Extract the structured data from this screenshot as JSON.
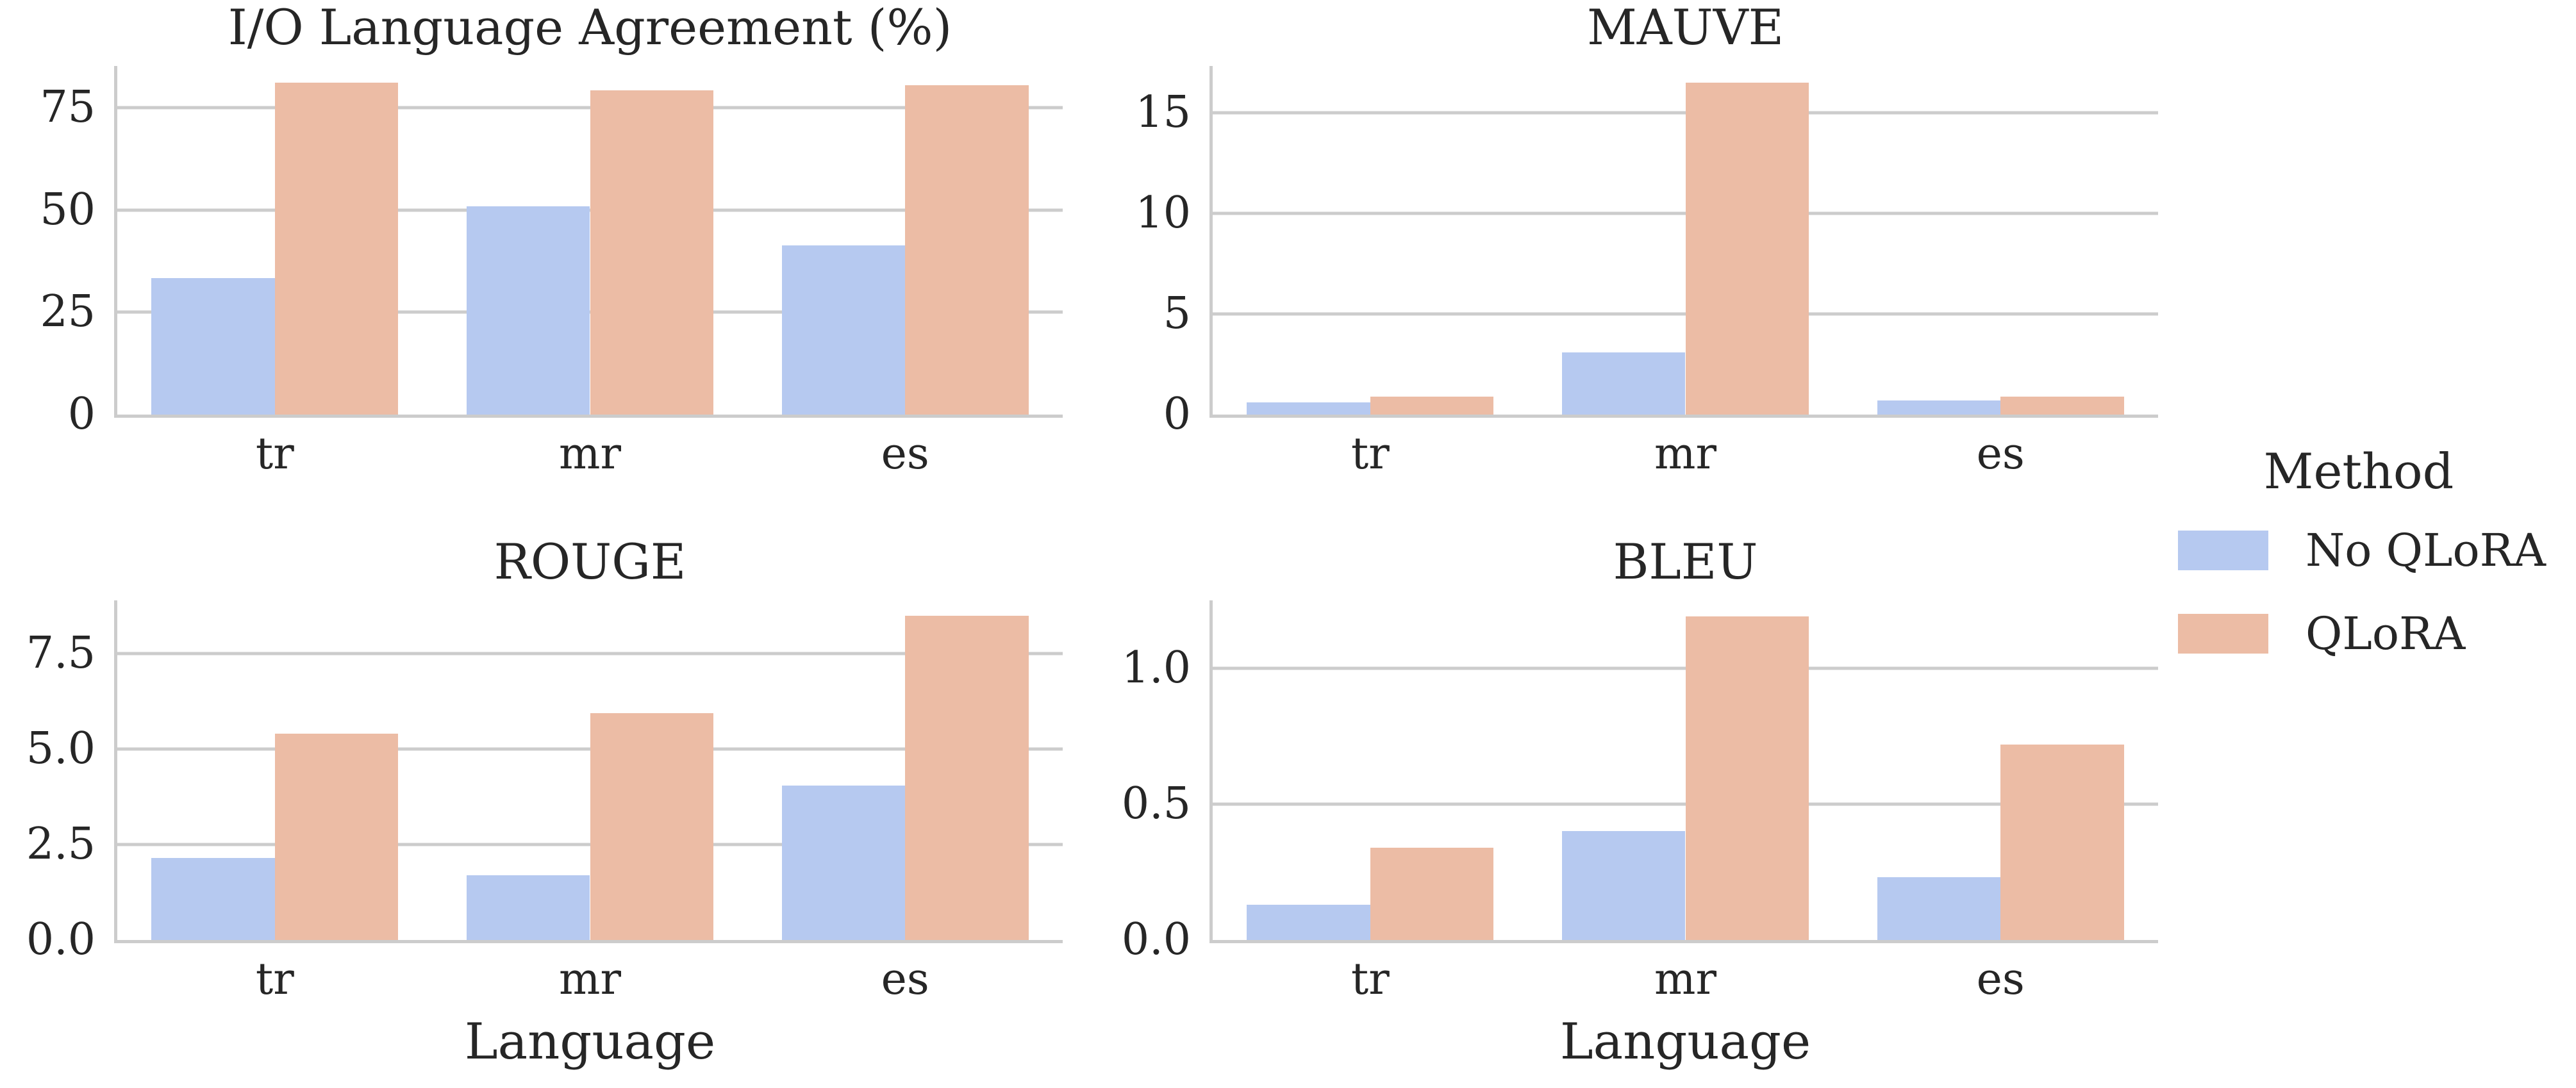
{
  "figure": {
    "background": "#ffffff",
    "text_color": "#262626",
    "grid_color": "#cccccc",
    "palette": [
      "#b6c9f0",
      "#ecbca5"
    ],
    "xlabel": "Language",
    "categories": [
      "tr",
      "mr",
      "es"
    ],
    "legend": {
      "title": "Method",
      "position": "right-outside",
      "items": [
        {
          "label": "No QLoRA",
          "color": "#b6c9f0"
        },
        {
          "label": "QLoRA",
          "color": "#ecbca5"
        }
      ]
    }
  },
  "chart_data": [
    {
      "type": "bar",
      "title": "I/O Language Agreement (%)",
      "xlabel": "",
      "ylabel": "",
      "categories": [
        "tr",
        "mr",
        "es"
      ],
      "series": [
        {
          "name": "No QLoRA",
          "values": [
            33.4,
            50.9,
            41.4
          ]
        },
        {
          "name": "QLoRA",
          "values": [
            81.1,
            79.3,
            80.5
          ]
        }
      ],
      "ylim": [
        0,
        85.2
      ],
      "yticks": [
        0,
        25,
        50,
        75
      ],
      "ytick_labels": [
        "0",
        "25",
        "50",
        "75"
      ],
      "grid": "horizontal",
      "legend_position": "none"
    },
    {
      "type": "bar",
      "title": "MAUVE",
      "xlabel": "",
      "ylabel": "",
      "categories": [
        "tr",
        "mr",
        "es"
      ],
      "series": [
        {
          "name": "No QLoRA",
          "values": [
            0.6,
            3.1,
            0.7
          ]
        },
        {
          "name": "QLoRA",
          "values": [
            0.9,
            16.5,
            0.88
          ]
        }
      ],
      "ylim": [
        0,
        17.33
      ],
      "yticks": [
        0,
        5,
        10,
        15
      ],
      "ytick_labels": [
        "0",
        "5",
        "10",
        "15"
      ],
      "grid": "horizontal",
      "legend_position": "none"
    },
    {
      "type": "bar",
      "title": "ROUGE",
      "xlabel": "Language",
      "ylabel": "",
      "categories": [
        "tr",
        "mr",
        "es"
      ],
      "series": [
        {
          "name": "No QLoRA",
          "values": [
            2.15,
            1.7,
            4.05
          ]
        },
        {
          "name": "QLoRA",
          "values": [
            5.4,
            5.95,
            8.5
          ]
        }
      ],
      "ylim": [
        0,
        8.9
      ],
      "yticks": [
        0,
        2.5,
        5,
        7.5
      ],
      "ytick_labels": [
        "0.0",
        "2.5",
        "5.0",
        "7.5"
      ],
      "grid": "horizontal",
      "legend_position": "none"
    },
    {
      "type": "bar",
      "title": "BLEU",
      "xlabel": "Language",
      "ylabel": "",
      "categories": [
        "tr",
        "mr",
        "es"
      ],
      "series": [
        {
          "name": "No QLoRA",
          "values": [
            0.13,
            0.4,
            0.23
          ]
        },
        {
          "name": "QLoRA",
          "values": [
            0.34,
            1.19,
            0.72
          ]
        }
      ],
      "ylim": [
        0,
        1.25
      ],
      "yticks": [
        0,
        0.5,
        1.0
      ],
      "ytick_labels": [
        "0.0",
        "0.5",
        "1.0"
      ],
      "grid": "horizontal",
      "legend_position": "none"
    }
  ]
}
